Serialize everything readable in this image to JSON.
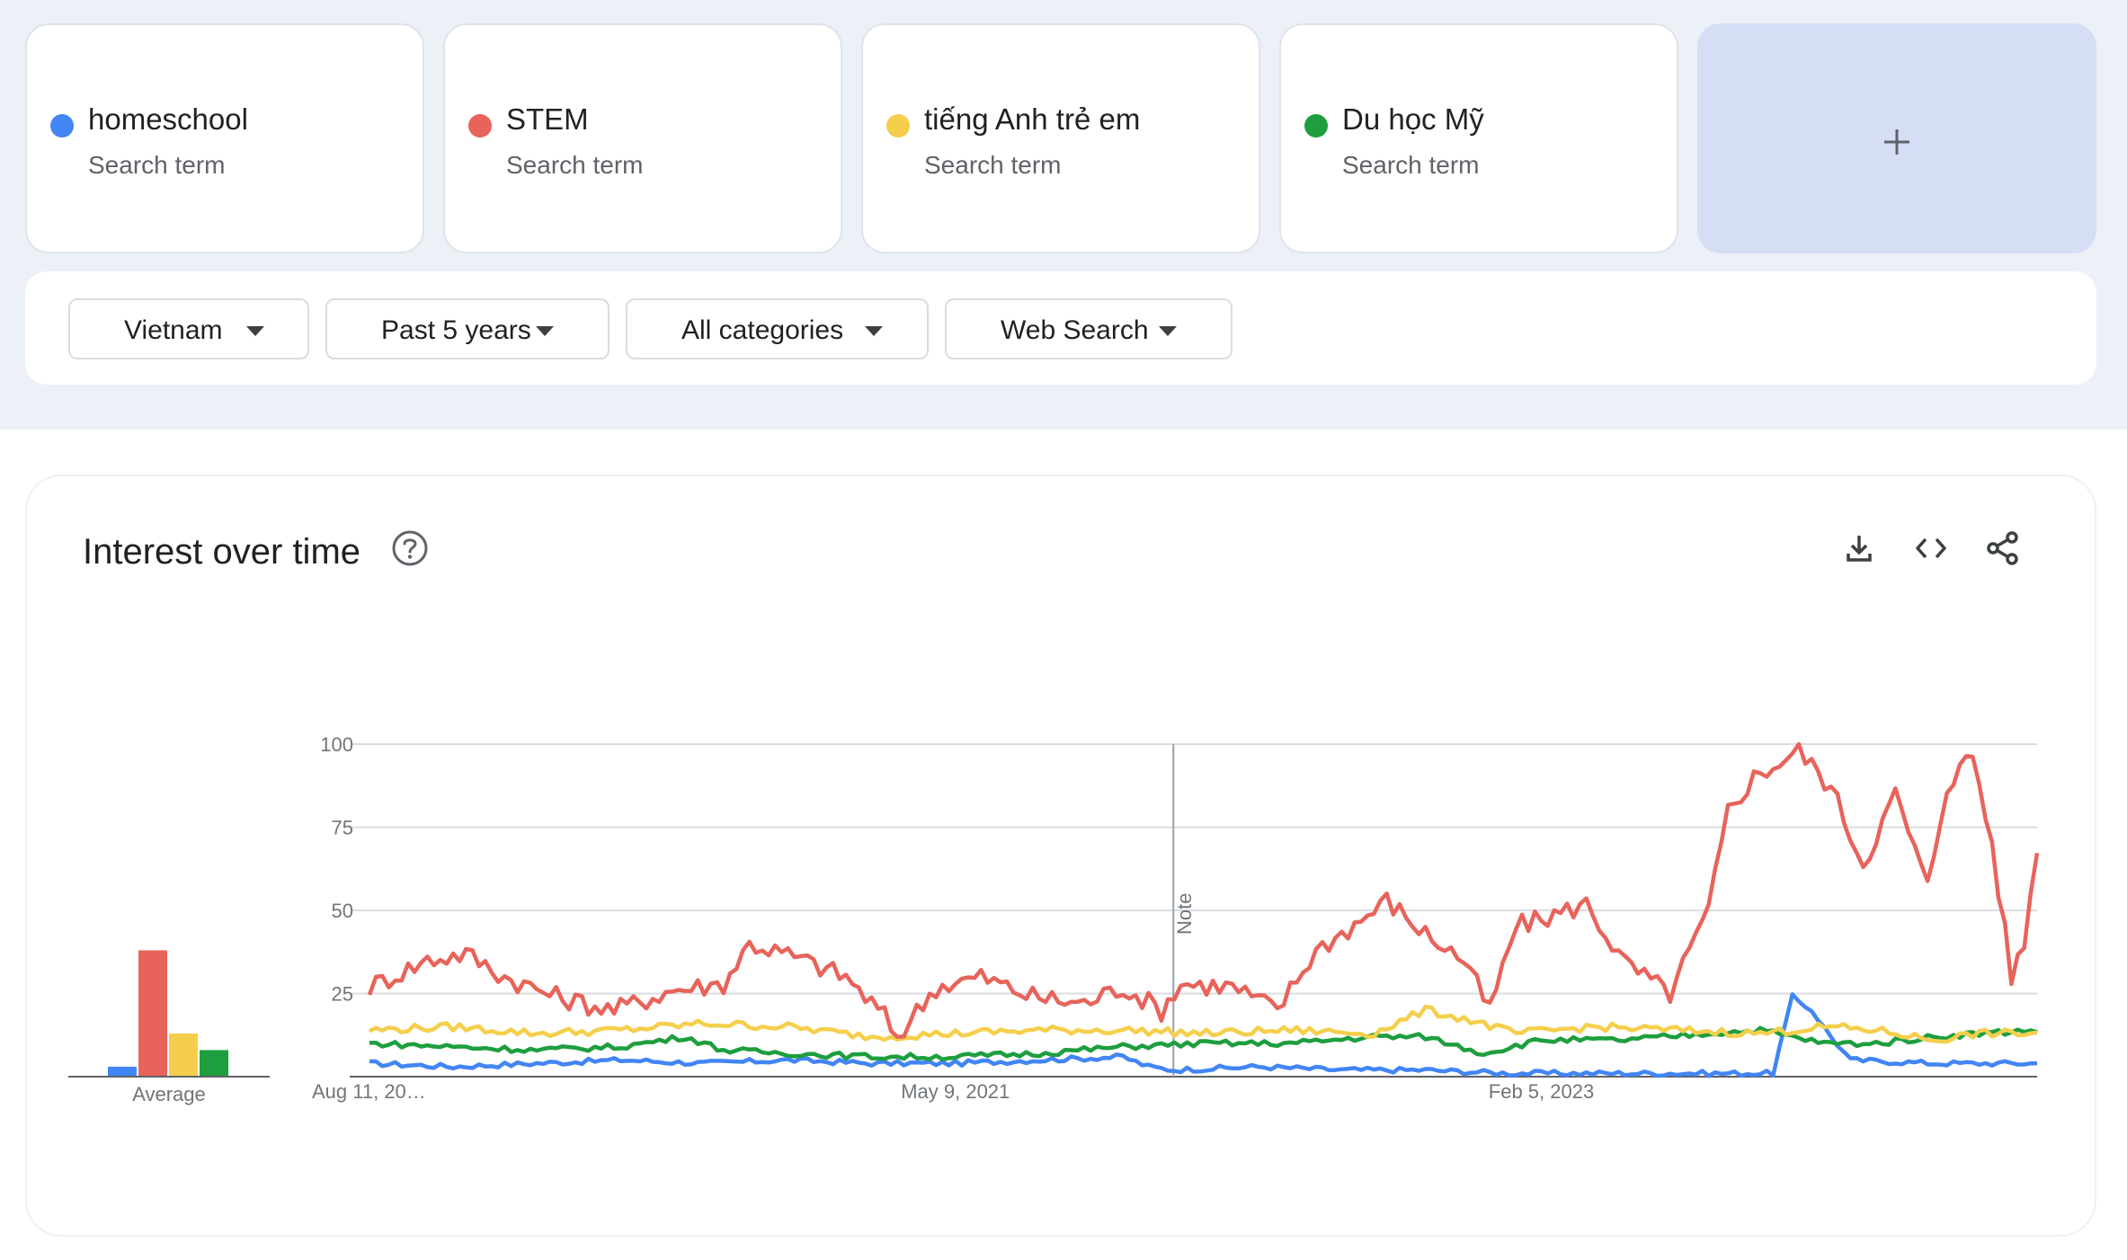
{
  "terms": [
    {
      "name": "homeschool",
      "sub": "Search term",
      "color": "#4285f4"
    },
    {
      "name": "STEM",
      "sub": "Search term",
      "color": "#e8635a"
    },
    {
      "name": "tiếng Anh trẻ em",
      "sub": "Search term",
      "color": "#f5cf4c"
    },
    {
      "name": "Du học Mỹ",
      "sub": "Search term",
      "color": "#1e9e3e"
    }
  ],
  "add_term_icon": "plus-icon",
  "filters": {
    "region": "Vietnam",
    "time": "Past 5 years",
    "category": "All categories",
    "property": "Web Search"
  },
  "panel": {
    "title": "Interest over time",
    "icons": [
      "help-icon",
      "download-icon",
      "embed-code-icon",
      "share-icon"
    ]
  },
  "chart_data": {
    "type": "line",
    "grid": true,
    "ylim": [
      0,
      100
    ],
    "yticks": [
      "100",
      "75",
      "50",
      "25"
    ],
    "xticks": [
      {
        "label": "Aug 11, 20…",
        "x": "2019-08-11"
      },
      {
        "label": "May 9, 2021",
        "x": "2021-05-09"
      },
      {
        "label": "Feb 5, 2023",
        "x": "2023-02-05"
      }
    ],
    "xrange": [
      "2019-08-11",
      "2024-07-28"
    ],
    "note": {
      "label": "Note",
      "x": "2022-01-01"
    },
    "average_label": "Average",
    "averages": [
      3,
      38,
      13,
      8
    ],
    "series": [
      {
        "name": "homeschool",
        "color": "#4285f4",
        "keypoints": [
          [
            "2019-08-11",
            4
          ],
          [
            "2019-11-10",
            3
          ],
          [
            "2020-02-09",
            4
          ],
          [
            "2020-05-10",
            5
          ],
          [
            "2020-08-09",
            4
          ],
          [
            "2020-11-08",
            5
          ],
          [
            "2021-02-07",
            4
          ],
          [
            "2021-05-09",
            4
          ],
          [
            "2021-08-08",
            5
          ],
          [
            "2021-11-07",
            6
          ],
          [
            "2021-12-05",
            3
          ],
          [
            "2022-01-01",
            2
          ],
          [
            "2022-04-03",
            3
          ],
          [
            "2022-07-03",
            2
          ],
          [
            "2022-10-02",
            2
          ],
          [
            "2023-01-01",
            1
          ],
          [
            "2023-04-02",
            1
          ],
          [
            "2023-07-02",
            1
          ],
          [
            "2023-10-15",
            1
          ],
          [
            "2023-11-05",
            24
          ],
          [
            "2023-11-26",
            20
          ],
          [
            "2023-12-17",
            12
          ],
          [
            "2024-01-07",
            5
          ],
          [
            "2024-04-07",
            4
          ],
          [
            "2024-07-28",
            4
          ]
        ]
      },
      {
        "name": "STEM",
        "color": "#e8635a",
        "keypoints": [
          [
            "2019-08-11",
            27
          ],
          [
            "2019-10-13",
            35
          ],
          [
            "2019-11-24",
            37
          ],
          [
            "2020-01-05",
            30
          ],
          [
            "2020-03-01",
            24
          ],
          [
            "2020-05-03",
            20
          ],
          [
            "2020-07-05",
            26
          ],
          [
            "2020-08-30",
            28
          ],
          [
            "2020-09-27",
            40
          ],
          [
            "2020-11-15",
            36
          ],
          [
            "2021-01-10",
            30
          ],
          [
            "2021-02-21",
            18
          ],
          [
            "2021-03-07",
            12
          ],
          [
            "2021-04-18",
            27
          ],
          [
            "2021-06-06",
            30
          ],
          [
            "2021-08-01",
            24
          ],
          [
            "2021-09-26",
            22
          ],
          [
            "2021-11-07",
            27
          ],
          [
            "2021-12-19",
            20
          ],
          [
            "2022-01-09",
            28
          ],
          [
            "2022-03-06",
            27
          ],
          [
            "2022-04-24",
            20
          ],
          [
            "2022-06-05",
            38
          ],
          [
            "2022-07-24",
            47
          ],
          [
            "2022-08-21",
            53
          ],
          [
            "2022-10-02",
            43
          ],
          [
            "2022-11-13",
            35
          ],
          [
            "2022-12-11",
            20
          ],
          [
            "2023-01-08",
            45
          ],
          [
            "2023-02-12",
            48
          ],
          [
            "2023-03-26",
            52
          ],
          [
            "2023-05-07",
            34
          ],
          [
            "2023-06-25",
            25
          ],
          [
            "2023-08-06",
            50
          ],
          [
            "2023-08-27",
            80
          ],
          [
            "2023-09-24",
            90
          ],
          [
            "2023-11-12",
            98
          ],
          [
            "2023-12-17",
            87
          ],
          [
            "2024-01-21",
            64
          ],
          [
            "2024-02-25",
            85
          ],
          [
            "2024-03-31",
            57
          ],
          [
            "2024-04-21",
            88
          ],
          [
            "2024-05-19",
            97
          ],
          [
            "2024-06-09",
            70
          ],
          [
            "2024-06-30",
            30
          ],
          [
            "2024-07-14",
            40
          ],
          [
            "2024-07-28",
            70
          ]
        ]
      },
      {
        "name": "tiếng Anh trẻ em",
        "color": "#f5cf4c",
        "keypoints": [
          [
            "2019-08-11",
            14
          ],
          [
            "2019-11-10",
            15
          ],
          [
            "2020-02-09",
            13
          ],
          [
            "2020-05-10",
            14
          ],
          [
            "2020-08-09",
            16
          ],
          [
            "2020-11-08",
            15
          ],
          [
            "2021-02-07",
            12
          ],
          [
            "2021-05-09",
            13
          ],
          [
            "2021-08-08",
            14
          ],
          [
            "2021-11-07",
            14
          ],
          [
            "2022-02-06",
            13
          ],
          [
            "2022-05-08",
            14
          ],
          [
            "2022-08-07",
            13
          ],
          [
            "2022-10-02",
            20
          ],
          [
            "2022-11-20",
            17
          ],
          [
            "2023-01-08",
            13
          ],
          [
            "2023-04-02",
            15
          ],
          [
            "2023-07-02",
            14
          ],
          [
            "2023-10-01",
            13
          ],
          [
            "2023-12-10",
            15
          ],
          [
            "2024-02-04",
            14
          ],
          [
            "2024-04-07",
            11
          ],
          [
            "2024-05-26",
            13
          ],
          [
            "2024-07-28",
            13
          ]
        ]
      },
      {
        "name": "Du học Mỹ",
        "color": "#1e9e3e",
        "keypoints": [
          [
            "2019-08-11",
            10
          ],
          [
            "2019-11-10",
            9
          ],
          [
            "2020-02-09",
            8
          ],
          [
            "2020-05-10",
            9
          ],
          [
            "2020-07-19",
            12
          ],
          [
            "2020-08-30",
            8
          ],
          [
            "2020-11-08",
            7
          ],
          [
            "2021-02-07",
            6
          ],
          [
            "2021-05-09",
            6
          ],
          [
            "2021-08-08",
            7
          ],
          [
            "2021-11-07",
            9
          ],
          [
            "2022-02-06",
            10
          ],
          [
            "2022-05-08",
            10
          ],
          [
            "2022-08-07",
            12
          ],
          [
            "2022-10-02",
            12
          ],
          [
            "2022-12-04",
            7
          ],
          [
            "2023-02-05",
            11
          ],
          [
            "2023-05-07",
            11
          ],
          [
            "2023-08-06",
            13
          ],
          [
            "2023-10-01",
            14
          ],
          [
            "2023-12-10",
            10
          ],
          [
            "2024-02-04",
            10
          ],
          [
            "2024-04-07",
            12
          ],
          [
            "2024-05-26",
            13
          ],
          [
            "2024-07-28",
            14
          ]
        ]
      }
    ]
  }
}
